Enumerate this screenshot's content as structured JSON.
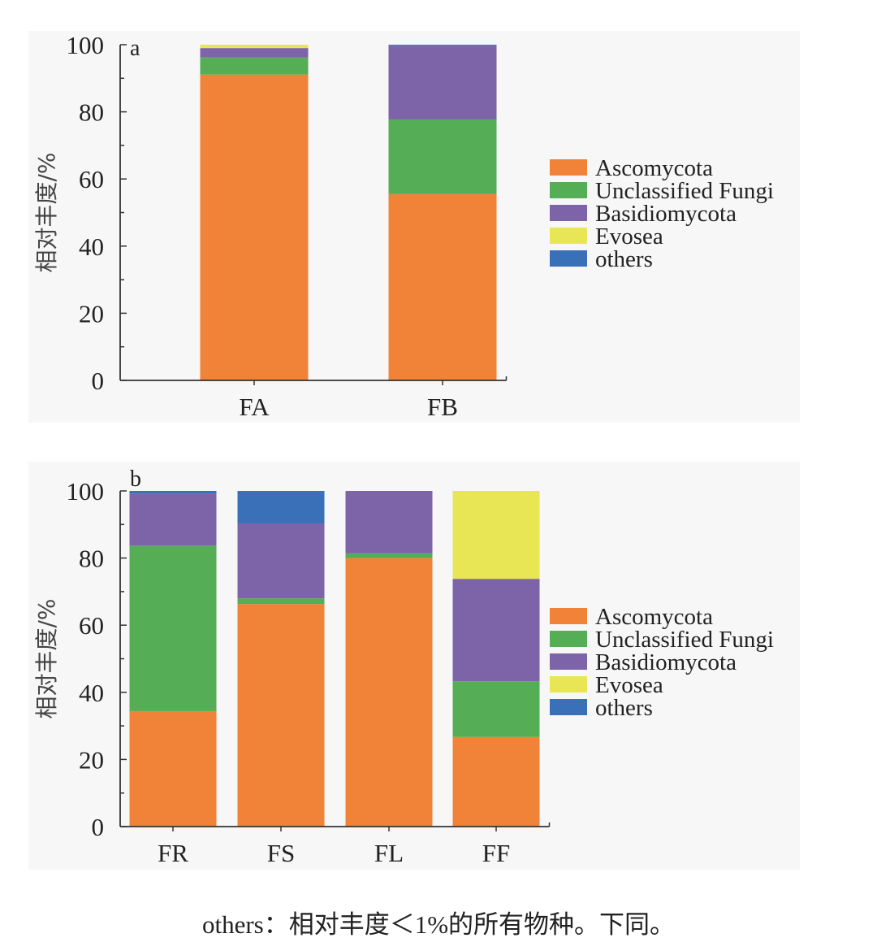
{
  "colors": {
    "Ascomycota": "#F08337",
    "Unclassified Fungi": "#55AD55",
    "Basidiomycota": "#7D63A7",
    "Evosea": "#E8E655",
    "others": "#3A70B8"
  },
  "chart_data": [
    {
      "type": "bar",
      "stacked": true,
      "panel_label": "a",
      "title": "",
      "xlabel": "",
      "ylabel": "相对丰度/%",
      "ylim": [
        0,
        100
      ],
      "yticks": [
        "0",
        "20",
        "40",
        "60",
        "80",
        "100"
      ],
      "grid": false,
      "legend": "right",
      "categories": [
        "FA",
        "FB"
      ],
      "series": [
        {
          "name": "Ascomycota",
          "values": [
            91.1,
            55.5
          ]
        },
        {
          "name": "Unclassified Fungi",
          "values": [
            5.1,
            22.2
          ]
        },
        {
          "name": "Basidiomycota",
          "values": [
            2.8,
            22.0
          ]
        },
        {
          "name": "Evosea",
          "values": [
            1.0,
            0.0
          ]
        },
        {
          "name": "others",
          "values": [
            0.0,
            0.3
          ]
        }
      ]
    },
    {
      "type": "bar",
      "stacked": true,
      "panel_label": "b",
      "title": "",
      "xlabel": "",
      "ylabel": "相对丰度/%",
      "ylim": [
        0,
        100
      ],
      "yticks": [
        "0",
        "20",
        "40",
        "60",
        "80",
        "100"
      ],
      "grid": false,
      "legend": "right",
      "categories": [
        "FR",
        "FS",
        "FL",
        "FF"
      ],
      "series": [
        {
          "name": "Ascomycota",
          "values": [
            34.4,
            66.3,
            80.0,
            26.7
          ]
        },
        {
          "name": "Unclassified Fungi",
          "values": [
            49.3,
            1.7,
            1.4,
            16.6
          ]
        },
        {
          "name": "Basidiomycota",
          "values": [
            15.5,
            22.3,
            18.6,
            30.5
          ]
        },
        {
          "name": "Evosea",
          "values": [
            0.0,
            0.0,
            0.0,
            26.2
          ]
        },
        {
          "name": "others",
          "values": [
            0.8,
            9.7,
            0.0,
            0.0
          ]
        }
      ]
    }
  ],
  "caption": "others：相对丰度＜1%的所有物种。下同。"
}
